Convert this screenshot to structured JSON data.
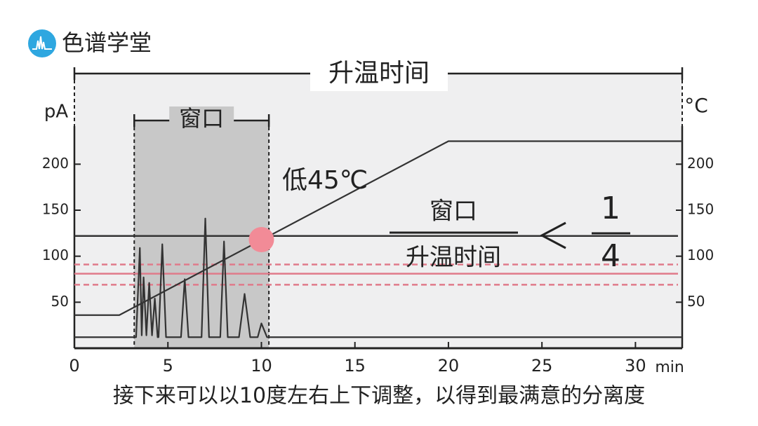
{
  "logo": "色谱学堂",
  "caption": "接下来可以以10度左右上下调整，以得到最满意的分离度",
  "chart_data": {
    "type": "line",
    "title": "升温时间",
    "y_label": "pA",
    "y2_label": "°C",
    "x_unit": "min",
    "xlim": [
      0,
      32.5
    ],
    "xticks": [
      0,
      5,
      10,
      15,
      20,
      25,
      30
    ],
    "ylim": [
      0,
      300
    ],
    "yticks": [
      50,
      100,
      150,
      200
    ],
    "y2lim": [
      0,
      300
    ],
    "y2ticks": [
      50,
      100,
      150,
      200
    ],
    "series": [
      {
        "color": "#333333",
        "x": [
          0,
          3.3,
          3.5,
          3.6,
          3.7,
          3.85,
          4.0,
          4.15,
          4.3,
          4.45,
          4.5,
          4.7,
          4.9,
          5.7,
          5.9,
          6.1,
          6.8,
          7.0,
          7.2,
          7.8,
          8.0,
          8.2,
          8.8,
          9.1,
          9.4,
          9.8,
          10.0,
          10.3,
          32.5
        ],
        "values": [
          12,
          12,
          109,
          14,
          77,
          14,
          71,
          14,
          54,
          12,
          12,
          113,
          12,
          12,
          75,
          12,
          12,
          141,
          12,
          12,
          116,
          12,
          12,
          59,
          12,
          12,
          27,
          12,
          12
        ]
      },
      {
        "color": "#333333",
        "axis": "y2",
        "x": [
          0,
          2.4,
          20,
          32.5
        ],
        "values": [
          36,
          36,
          225,
          225
        ]
      }
    ],
    "window": {
      "label": "窗口",
      "x": [
        3.2,
        10.4
      ]
    },
    "annotation": "低45℃",
    "hlines": [
      {
        "value": 122,
        "color": "#333333"
      },
      {
        "value": 91,
        "color": "#e07a8a",
        "dashed": true
      },
      {
        "value": 81,
        "color": "#e07a8a"
      },
      {
        "value": 69,
        "color": "#e07a8a",
        "dashed": true
      }
    ],
    "marker": {
      "x": 10,
      "value": 118,
      "color": "#f28b97"
    },
    "fraction": {
      "numerator": "窗口",
      "denominator": "升温时间",
      "ratio_numerator": 1,
      "ratio_denominator": 4
    }
  }
}
